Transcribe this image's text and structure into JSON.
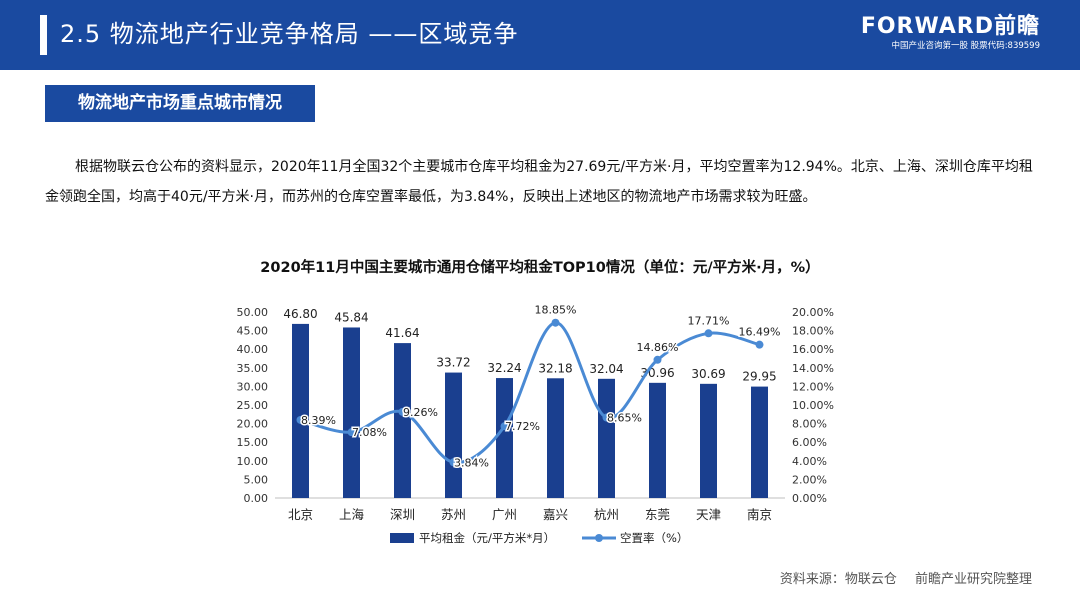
{
  "header": {
    "title": "2.5 物流地产行业竞争格局 ——区域竞争"
  },
  "logo": {
    "name": "FORWARD前瞻",
    "tagline": "中国产业咨询第一股 股票代码:839599"
  },
  "section": {
    "title": "物流地产市场重点城市情况"
  },
  "paragraph": "根据物联云仓公布的资料显示，2020年11月全国32个主要城市仓库平均租金为27.69元/平方米·月，平均空置率为12.94%。北京、上海、深圳仓库平均租金领跑全国，均高于40元/平方米·月，而苏州的仓库空置率最低，为3.84%，反映出上述地区的物流地产市场需求较为旺盛。",
  "chart_data": {
    "type": "bar",
    "title": "2020年11月中国主要城市通用仓储平均租金TOP10情况（单位：元/平方米·月，%）",
    "categories": [
      "北京",
      "上海",
      "深圳",
      "苏州",
      "广州",
      "嘉兴",
      "杭州",
      "东莞",
      "天津",
      "南京"
    ],
    "series": [
      {
        "name": "平均租金（元/平方米*月）",
        "type": "bar",
        "axis": "left",
        "color": "#1a3f8f",
        "values": [
          46.8,
          45.84,
          41.64,
          33.72,
          32.24,
          32.18,
          32.04,
          30.96,
          30.69,
          29.95
        ],
        "labels": [
          "46.80",
          "45.84",
          "41.64",
          "33.72",
          "32.24",
          "32.18",
          "32.04",
          "30.96",
          "30.69",
          "29.95"
        ]
      },
      {
        "name": "空置率（%）",
        "type": "line",
        "axis": "right",
        "color": "#4a8ad4",
        "values": [
          8.39,
          7.08,
          9.26,
          3.84,
          7.72,
          18.85,
          8.65,
          14.86,
          17.71,
          16.49
        ],
        "labels": [
          "8.39%",
          "7.08%",
          "9.26%",
          "3.84%",
          "7.72%",
          "18.85%",
          "8.65%",
          "14.86%",
          "17.71%",
          "16.49%"
        ]
      }
    ],
    "y_left": {
      "ylim": [
        0,
        50
      ],
      "ticks": [
        "0.00",
        "5.00",
        "10.00",
        "15.00",
        "20.00",
        "25.00",
        "30.00",
        "35.00",
        "40.00",
        "45.00",
        "50.00"
      ]
    },
    "y_right": {
      "ylim": [
        0,
        20
      ],
      "ticks": [
        "0.00%",
        "2.00%",
        "4.00%",
        "6.00%",
        "8.00%",
        "10.00%",
        "12.00%",
        "14.00%",
        "16.00%",
        "18.00%",
        "20.00%"
      ]
    },
    "grid": false,
    "legend": "bottom"
  },
  "source": {
    "label": "资料来源：物联云仓",
    "org": "前瞻产业研究院整理"
  }
}
